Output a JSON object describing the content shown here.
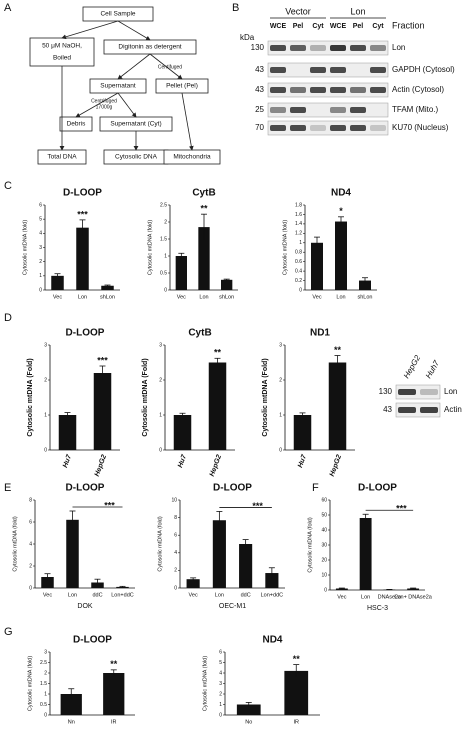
{
  "panel_labels": [
    "A",
    "B",
    "C",
    "D",
    "E",
    "F",
    "G"
  ],
  "flowchart": {
    "nodes": [
      "Cell Sample",
      "50 μM NaOH,",
      "Boiled",
      "Digitonin as detergent",
      "Centifuged",
      "Supernatant",
      "Pellet (Pel)",
      "Centrifuged",
      "17000g",
      "Debris",
      "Supernatant (Cyt)",
      "Total DNA",
      "Cytosolic DNA",
      "Mitochondria"
    ]
  },
  "blot_b": {
    "groups": [
      "Vector",
      "Lon"
    ],
    "lanes": [
      "WCE",
      "Pel",
      "Cyt",
      "WCE",
      "Pel",
      "Cyt"
    ],
    "fraction_label": "Fraction",
    "kda_label": "kDa",
    "markers": [
      "130",
      "43",
      "43",
      "25",
      "70"
    ],
    "bands": [
      "Lon",
      "GAPDH (Cytosol)",
      "Actin (Cytosol)",
      "TFAM (Mito.)",
      "KU70 (Nucleus)"
    ]
  },
  "blot_d": {
    "lanes": [
      "HepG2",
      "Huh7"
    ],
    "markers": [
      "130",
      "43"
    ],
    "bands": [
      "Lon",
      "Actin"
    ]
  },
  "chart_data": [
    {
      "type": "bar",
      "title": "D-LOOP",
      "y_label": "Cytosolic mtDNA (fold)",
      "categories": [
        "Vec",
        "Lon",
        "shLon"
      ],
      "values": [
        1,
        4.4,
        0.3
      ],
      "errors": [
        0.15,
        0.55,
        0.05
      ],
      "annotation": "***",
      "color": "#111",
      "ylim": [
        0,
        6
      ],
      "yticks": [
        0,
        1,
        2,
        3,
        4,
        5,
        6
      ]
    },
    {
      "type": "bar",
      "title": "CytB",
      "y_label": "Cytosolic mtDNA (fold)",
      "categories": [
        "Vec",
        "Lon",
        "shLon"
      ],
      "values": [
        1,
        1.85,
        0.3
      ],
      "errors": [
        0.08,
        0.38,
        0.02
      ],
      "annotation": "**",
      "color": "#111",
      "ylim": [
        0,
        2.5
      ],
      "yticks": [
        0,
        0.5,
        1,
        1.5,
        2,
        2.5
      ]
    },
    {
      "type": "bar",
      "title": "ND4",
      "y_label": "Cytosolic mtDNA (fold)",
      "categories": [
        "Vec",
        "Lon",
        "shLon"
      ],
      "values": [
        1,
        1.45,
        0.2
      ],
      "errors": [
        0.12,
        0.1,
        0.06
      ],
      "annotation": "*",
      "color": "#111",
      "ylim": [
        0,
        1.8
      ],
      "yticks": [
        0,
        0.2,
        0.4,
        0.6,
        0.8,
        1,
        1.2,
        1.4,
        1.6,
        1.8
      ]
    },
    {
      "type": "bar",
      "title": "D-LOOP",
      "y_label": "Cytosolic mtDNA (Fold)",
      "categories": [
        "Hu7",
        "HepG2"
      ],
      "values": [
        1,
        2.2
      ],
      "errors": [
        0.07,
        0.2
      ],
      "annotation": "***",
      "color": "#111",
      "ylim": [
        0,
        3
      ],
      "yticks": [
        0,
        1,
        2,
        3
      ]
    },
    {
      "type": "bar",
      "title": "CytB",
      "y_label": "Cytosolic mtDNA (Fold)",
      "categories": [
        "Hu7",
        "HepG2"
      ],
      "values": [
        1,
        2.5
      ],
      "errors": [
        0.05,
        0.12
      ],
      "annotation": "**",
      "color": "#111",
      "ylim": [
        0,
        3
      ],
      "yticks": [
        0,
        1,
        2,
        3
      ]
    },
    {
      "type": "bar",
      "title": "ND1",
      "y_label": "Cytosolic mtDNA (Fold)",
      "categories": [
        "Hu7",
        "HepG2"
      ],
      "values": [
        1,
        2.5
      ],
      "errors": [
        0.06,
        0.2
      ],
      "annotation": "**",
      "color": "#111",
      "ylim": [
        0,
        3
      ],
      "yticks": [
        0,
        1,
        2,
        3
      ]
    },
    {
      "type": "bar",
      "title": "D-LOOP",
      "y_label": "Cytosolic mtDNA (fold)",
      "x_label": "DOK",
      "categories": [
        "Vec",
        "Lon",
        "ddC",
        "Lon+ddC"
      ],
      "values": [
        1,
        6.2,
        0.5,
        0.1
      ],
      "errors": [
        0.3,
        0.8,
        0.3,
        0.05
      ],
      "annotation": "***",
      "color": "#111",
      "ylim": [
        0,
        8
      ],
      "yticks": [
        0,
        2,
        4,
        6,
        8
      ]
    },
    {
      "type": "bar",
      "title": "D-LOOP",
      "y_label": "Cytosolic mtDNA (fold)",
      "x_label": "OEC-M1",
      "categories": [
        "Vec",
        "Lon",
        "ddC",
        "Lon+ddC"
      ],
      "values": [
        1,
        7.7,
        5,
        1.7
      ],
      "errors": [
        0.15,
        1,
        0.5,
        0.6
      ],
      "annotation": "***",
      "color": "#111",
      "ylim": [
        0,
        10
      ],
      "yticks": [
        0,
        2,
        4,
        6,
        8,
        10
      ]
    },
    {
      "type": "bar",
      "title": "D-LOOP",
      "y_label": "Cytosolic mtDNA (fold)",
      "x_label": "HSC-3",
      "categories": [
        "Vec",
        "Lon",
        "DNAse2a",
        "Lon+ DNAse2a"
      ],
      "values": [
        1,
        48,
        0.3,
        1
      ],
      "errors": [
        0.3,
        2.5,
        0.1,
        0.3
      ],
      "annotation": "***",
      "color": "#111",
      "ylim": [
        0,
        60
      ],
      "yticks": [
        0,
        10,
        20,
        30,
        40,
        50,
        60
      ]
    },
    {
      "type": "bar",
      "title": "D-LOOP",
      "y_label": "Cytosolic mtDNA (fold)",
      "categories": [
        "Nn",
        "IR"
      ],
      "values": [
        1,
        2
      ],
      "errors": [
        0.25,
        0.15
      ],
      "annotation": "**",
      "color": "#111",
      "ylim": [
        0,
        3
      ],
      "yticks": [
        0,
        0.5,
        1,
        1.5,
        2,
        2.5,
        3
      ]
    },
    {
      "type": "bar",
      "title": "ND4",
      "y_label": "Cytosolic mtDNA (fold)",
      "categories": [
        "No",
        "IR"
      ],
      "values": [
        1,
        4.2
      ],
      "errors": [
        0.2,
        0.6
      ],
      "annotation": "**",
      "color": "#111",
      "ylim": [
        0,
        6
      ],
      "yticks": [
        0,
        1,
        2,
        3,
        4,
        5,
        6
      ]
    }
  ]
}
